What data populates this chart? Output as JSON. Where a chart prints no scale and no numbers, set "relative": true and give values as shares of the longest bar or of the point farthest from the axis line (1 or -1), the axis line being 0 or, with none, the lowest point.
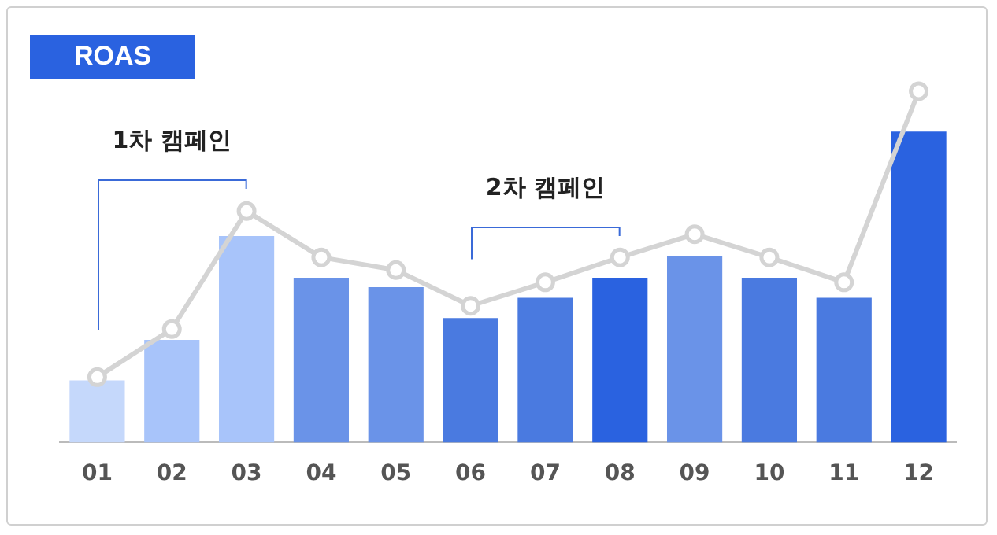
{
  "chart_data": {
    "type": "bar",
    "title": "ROAS",
    "relative": true,
    "categories": [
      "01",
      "02",
      "03",
      "04",
      "05",
      "06",
      "07",
      "08",
      "09",
      "10",
      "11",
      "12"
    ],
    "series": [
      {
        "colors": [
          "#c5d8fb",
          "#a8c4fa",
          "#a8c4fa",
          "#6a93e8",
          "#6a93e8",
          "#4a7ae0",
          "#4a7ae0",
          "#2a62e0",
          "#6a93e8",
          "#4a7ae0",
          "#4a7ae0",
          "#2a62e0"
        ],
        "values": [
          0.177,
          0.292,
          0.588,
          0.469,
          0.442,
          0.354,
          0.412,
          0.469,
          0.531,
          0.469,
          0.412,
          0.885
        ]
      },
      {
        "type": "line",
        "color": "#d4d4d4",
        "marker": "circle",
        "values": [
          0.186,
          0.323,
          0.659,
          0.527,
          0.491,
          0.389,
          0.456,
          0.527,
          0.593,
          0.527,
          0.456,
          1
        ]
      }
    ],
    "annotations": [
      "1차 캠페인",
      "2차 캠페인"
    ]
  }
}
